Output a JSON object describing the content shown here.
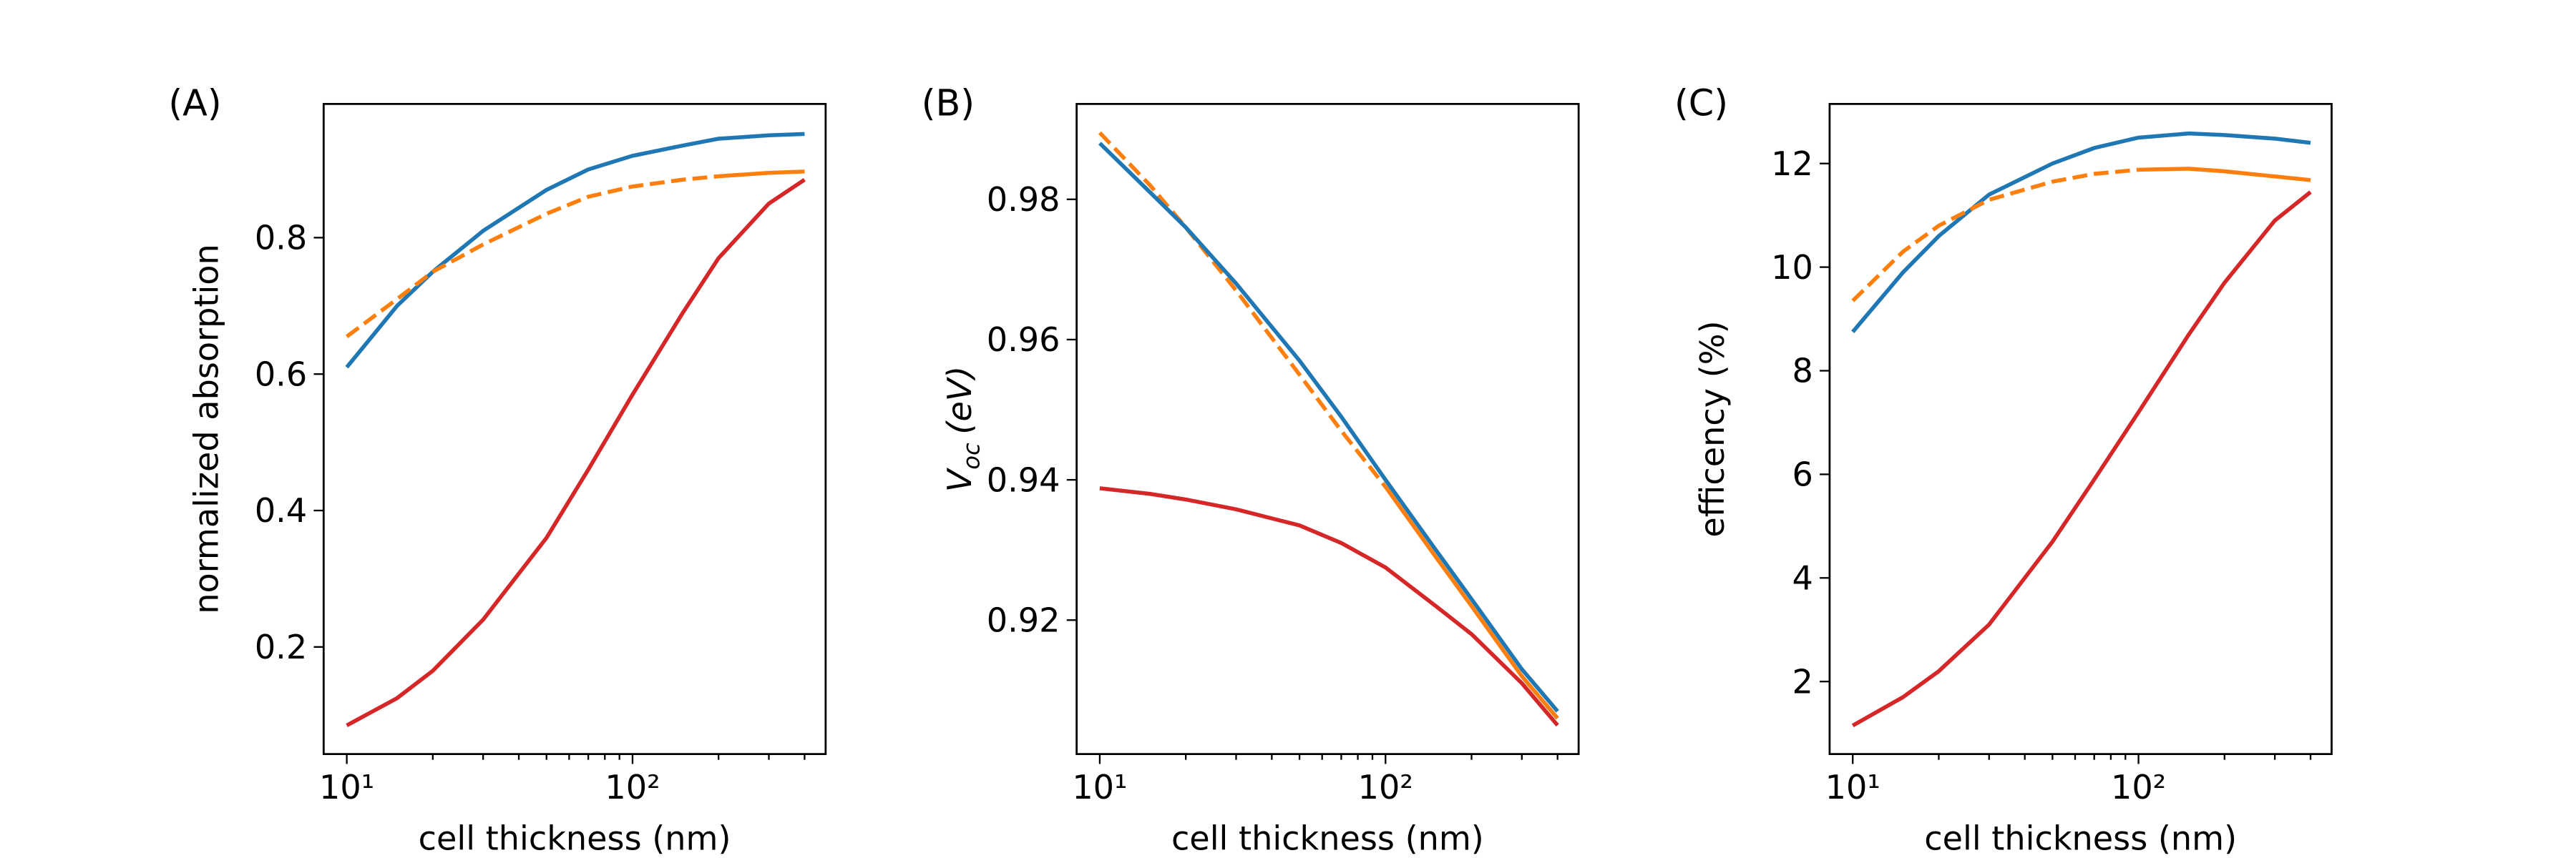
{
  "chart_data": [
    {
      "type": "line",
      "panel_label": "(A)",
      "xlabel": "cell thickness (nm)",
      "ylabel": "normalized absorption",
      "xscale": "log",
      "xlim": [
        8.3,
        474
      ],
      "xticks": [
        {
          "value": 10,
          "label": "10¹"
        },
        {
          "value": 100,
          "label": "10²"
        }
      ],
      "xminorticks": [
        20,
        30,
        40,
        50,
        60,
        70,
        80,
        90,
        200,
        300,
        400
      ],
      "ylim": [
        0.043,
        0.996
      ],
      "yticks": [
        0.2,
        0.4,
        0.6,
        0.8
      ],
      "x": [
        10,
        15,
        20,
        30,
        50,
        70,
        100,
        150,
        200,
        300,
        400
      ],
      "series": [
        {
          "color": "#1f77b4",
          "linestyle": "solid",
          "values": [
            0.61,
            0.7,
            0.75,
            0.81,
            0.87,
            0.9,
            0.92,
            0.935,
            0.945,
            0.95,
            0.952
          ]
        },
        {
          "color": "#ff7f0e",
          "linestyle": "dashed",
          "values": [
            0.655,
            0.71,
            0.75,
            0.79,
            0.835,
            0.86,
            0.875,
            0.885,
            0.89,
            null,
            null
          ]
        },
        {
          "color": "#ff7f0e",
          "linestyle": "solid",
          "values": [
            null,
            null,
            null,
            null,
            null,
            null,
            null,
            null,
            0.89,
            0.895,
            0.897
          ]
        },
        {
          "color": "#d62728",
          "linestyle": "solid",
          "values": [
            0.085,
            0.125,
            0.165,
            0.24,
            0.36,
            0.46,
            0.57,
            0.69,
            0.77,
            0.85,
            0.885
          ]
        }
      ]
    },
    {
      "type": "line",
      "panel_label": "(B)",
      "xlabel": "cell thickness (nm)",
      "ylabel": {
        "main": "V",
        "sub": "oc",
        "rest": "(eV)"
      },
      "xscale": "log",
      "xlim": [
        8.3,
        474
      ],
      "xticks": [
        {
          "value": 10,
          "label": "10¹"
        },
        {
          "value": 100,
          "label": "10²"
        }
      ],
      "xminorticks": [
        20,
        30,
        40,
        50,
        60,
        70,
        80,
        90,
        200,
        300,
        400
      ],
      "ylim": [
        0.9009,
        0.9936
      ],
      "yticks": [
        0.92,
        0.94,
        0.96,
        0.98
      ],
      "x": [
        10,
        15,
        20,
        30,
        50,
        70,
        100,
        150,
        200,
        300,
        400
      ],
      "series": [
        {
          "color": "#ff7f0e",
          "linestyle": "dashed",
          "values": [
            0.9895,
            0.982,
            0.976,
            0.967,
            0.955,
            0.947,
            0.939,
            null,
            null,
            null,
            null
          ]
        },
        {
          "color": "#ff7f0e",
          "linestyle": "solid",
          "values": [
            null,
            null,
            null,
            null,
            null,
            null,
            0.939,
            0.929,
            0.922,
            0.912,
            0.906
          ]
        },
        {
          "color": "#1f77b4",
          "linestyle": "solid",
          "values": [
            0.988,
            0.981,
            0.976,
            0.968,
            0.957,
            0.949,
            0.94,
            0.93,
            0.923,
            0.913,
            0.907
          ]
        },
        {
          "color": "#d62728",
          "linestyle": "solid",
          "values": [
            0.9388,
            0.938,
            0.9372,
            0.9358,
            0.9335,
            0.931,
            0.9275,
            0.922,
            0.918,
            0.911,
            0.905
          ]
        }
      ]
    },
    {
      "type": "line",
      "panel_label": "(C)",
      "xlabel": "cell thickness (nm)",
      "ylabel": "efficency (%)",
      "xscale": "log",
      "xlim": [
        8.3,
        474
      ],
      "xticks": [
        {
          "value": 10,
          "label": "10¹"
        },
        {
          "value": 100,
          "label": "10²"
        }
      ],
      "xminorticks": [
        20,
        30,
        40,
        50,
        60,
        70,
        80,
        90,
        200,
        300,
        400
      ],
      "ylim": [
        0.6,
        13.15
      ],
      "yticks": [
        2,
        4,
        6,
        8,
        10,
        12
      ],
      "x": [
        10,
        15,
        20,
        30,
        50,
        70,
        100,
        150,
        200,
        300,
        400
      ],
      "series": [
        {
          "color": "#1f77b4",
          "linestyle": "solid",
          "values": [
            8.75,
            9.9,
            10.6,
            11.4,
            12.0,
            12.3,
            12.5,
            12.58,
            12.55,
            12.48,
            12.4
          ]
        },
        {
          "color": "#ff7f0e",
          "linestyle": "dashed",
          "values": [
            9.35,
            10.3,
            10.8,
            11.3,
            11.65,
            11.8,
            11.88,
            null,
            null,
            null,
            null
          ]
        },
        {
          "color": "#ff7f0e",
          "linestyle": "solid",
          "values": [
            null,
            null,
            null,
            null,
            null,
            null,
            11.88,
            11.9,
            11.85,
            11.75,
            11.68
          ]
        },
        {
          "color": "#d62728",
          "linestyle": "solid",
          "values": [
            1.15,
            1.7,
            2.2,
            3.1,
            4.7,
            5.9,
            7.2,
            8.7,
            9.7,
            10.9,
            11.45
          ]
        }
      ]
    }
  ]
}
